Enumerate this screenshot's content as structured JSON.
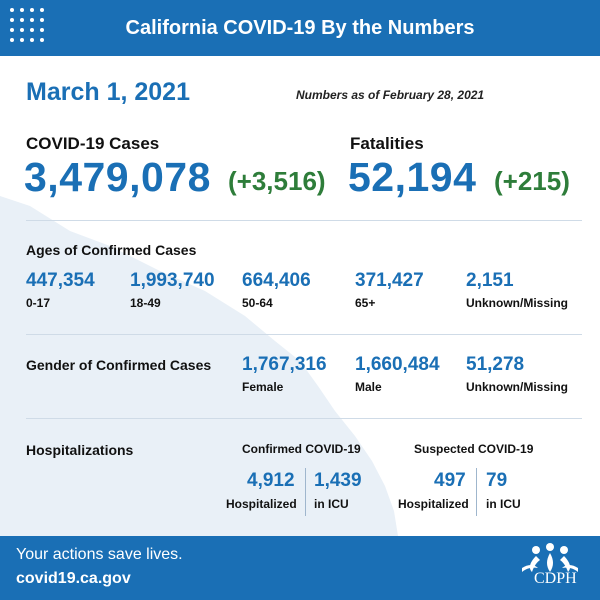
{
  "header": {
    "title": "California COVID-19 By the Numbers"
  },
  "report": {
    "date": "March 1, 2021",
    "as_of": "Numbers as of February 28, 2021"
  },
  "cases": {
    "label": "COVID-19 Cases",
    "total": "3,479,078",
    "change": "(+3,516)"
  },
  "fatalities": {
    "label": "Fatalities",
    "total": "52,194",
    "change": "(+215)"
  },
  "ages": {
    "title": "Ages of Confirmed Cases",
    "groups": [
      {
        "value": "447,354",
        "label": "0-17"
      },
      {
        "value": "1,993,740",
        "label": "18-49"
      },
      {
        "value": "664,406",
        "label": "50-64"
      },
      {
        "value": "371,427",
        "label": "65+"
      },
      {
        "value": "2,151",
        "label": "Unknown/Missing"
      }
    ]
  },
  "gender": {
    "title": "Gender of Confirmed Cases",
    "groups": [
      {
        "value": "1,767,316",
        "label": "Female"
      },
      {
        "value": "1,660,484",
        "label": "Male"
      },
      {
        "value": "51,278",
        "label": "Unknown/Missing"
      }
    ]
  },
  "hospitalizations": {
    "title": "Hospitalizations",
    "confirmed": {
      "title": "Confirmed COVID-19",
      "hospitalized": {
        "value": "4,912",
        "label": "Hospitalized"
      },
      "icu": {
        "value": "1,439",
        "label": "in ICU"
      }
    },
    "suspected": {
      "title": "Suspected COVID-19",
      "hospitalized": {
        "value": "497",
        "label": "Hospitalized"
      },
      "icu": {
        "value": "79",
        "label": "in ICU"
      }
    }
  },
  "footer": {
    "tagline": "Your actions save lives.",
    "url": "covid19.ca.gov",
    "logo_text": "CDPH"
  },
  "colors": {
    "brand_blue": "#1a6fb5",
    "change_green": "#2e7d3a",
    "map_tint": "#e9f0f7"
  }
}
